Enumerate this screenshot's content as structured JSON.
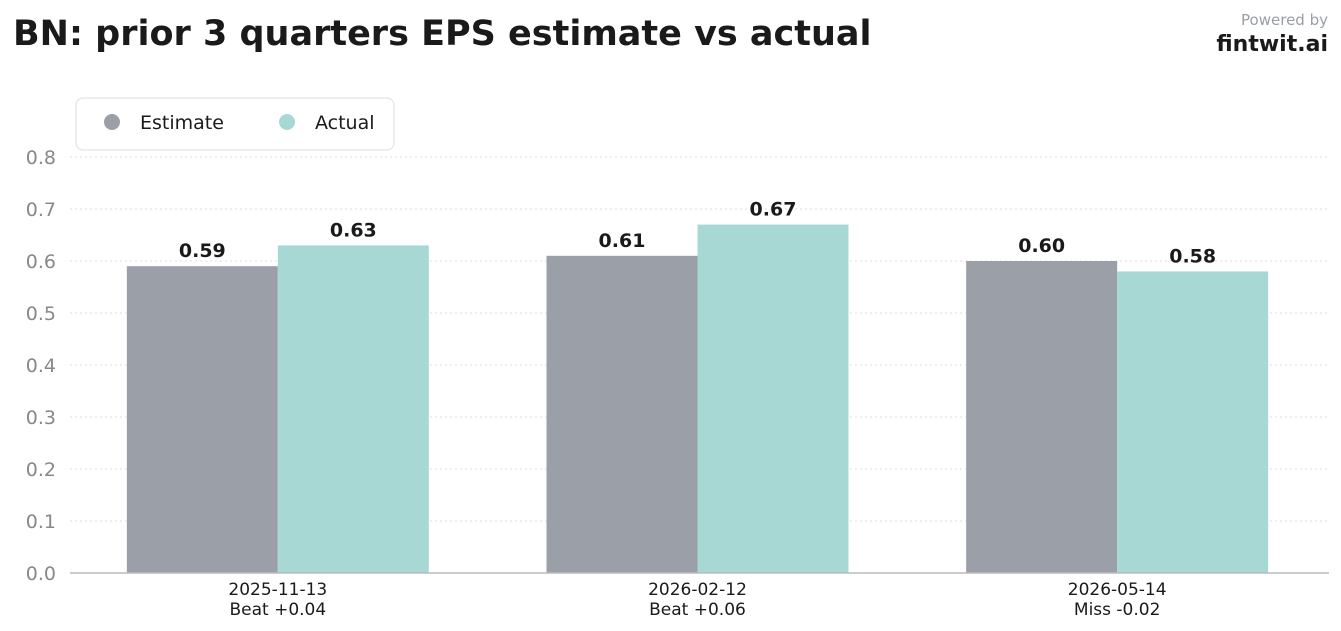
{
  "header": {
    "title": "BN: prior 3 quarters EPS estimate vs actual",
    "powered_by": "Powered by",
    "brand": "fintwit.ai"
  },
  "colors": {
    "estimate": "#9b9fa7",
    "actual": "#a8d8d4",
    "tick_text": "#888888",
    "label_text": "#1a1a1a",
    "grid": "#dddddd",
    "axis": "#bbbbbb"
  },
  "chart_data": {
    "type": "bar",
    "categories": [
      "2025-11-13",
      "2026-02-12",
      "2026-05-14"
    ],
    "category_notes": [
      "Beat +0.04",
      "Beat +0.06",
      "Miss -0.02"
    ],
    "series": [
      {
        "name": "Estimate",
        "values": [
          0.59,
          0.61,
          0.6
        ],
        "labels": [
          "0.59",
          "0.61",
          "0.60"
        ]
      },
      {
        "name": "Actual",
        "values": [
          0.63,
          0.67,
          0.58
        ],
        "labels": [
          "0.63",
          "0.67",
          "0.58"
        ]
      }
    ],
    "ylim": [
      0,
      0.8
    ],
    "yticks": [
      0.0,
      0.1,
      0.2,
      0.3,
      0.4,
      0.5,
      0.6,
      0.7,
      0.8
    ],
    "ytick_labels": [
      "0.0",
      "0.1",
      "0.2",
      "0.3",
      "0.4",
      "0.5",
      "0.6",
      "0.7",
      "0.8"
    ],
    "grid": true,
    "legend": "top-left"
  }
}
